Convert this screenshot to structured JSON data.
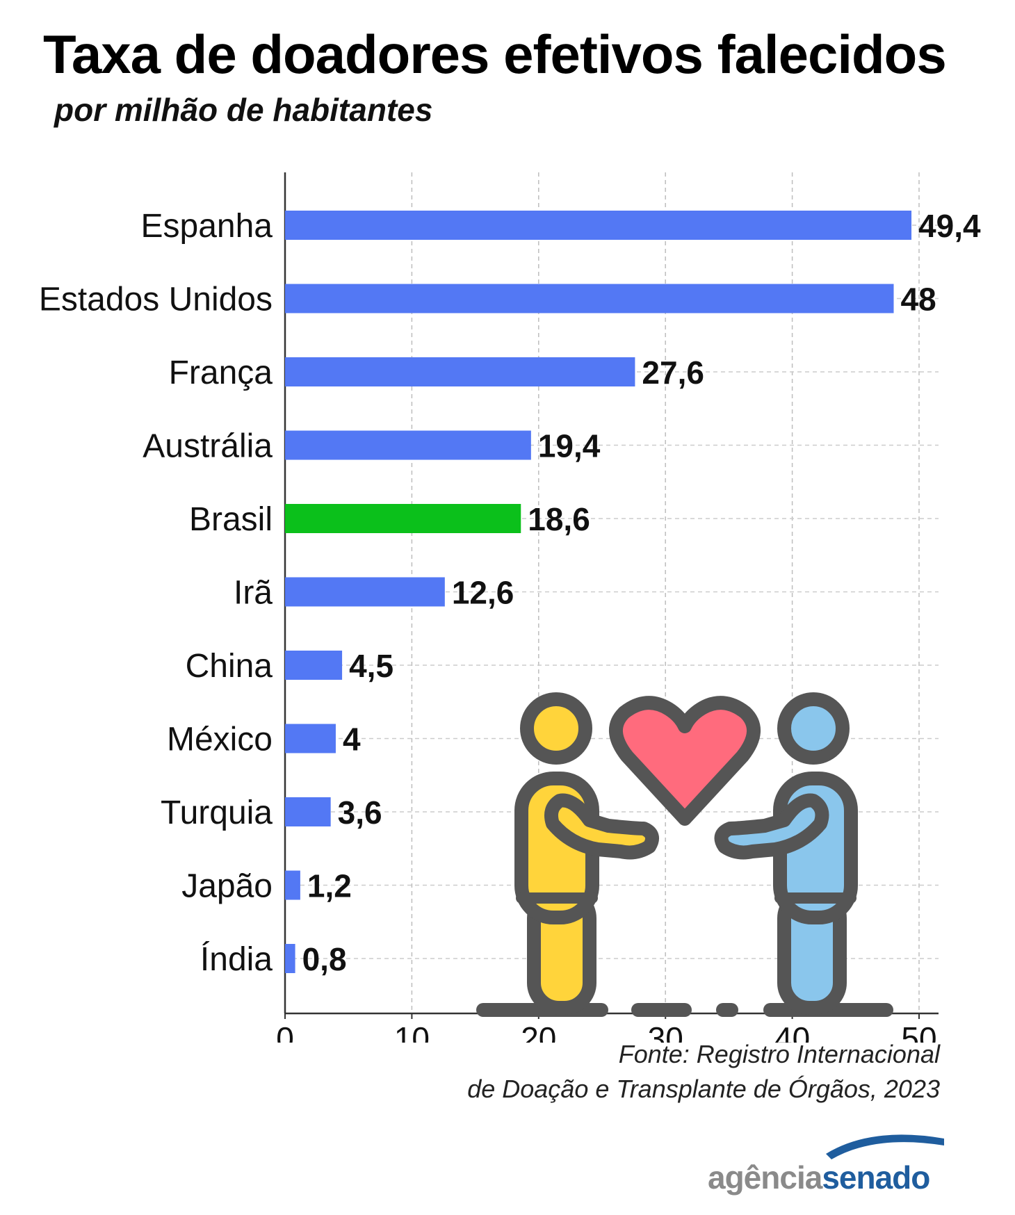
{
  "header": {
    "title": "Taxa de doadores efetivos falecidos",
    "subtitle": "por milhão de habitantes"
  },
  "chart_data": {
    "type": "bar",
    "orientation": "horizontal",
    "categories": [
      "Espanha",
      "Estados Unidos",
      "França",
      "Austrália",
      "Brasil",
      "Irã",
      "China",
      "México",
      "Turquia",
      "Japão",
      "Índia"
    ],
    "values": [
      49.4,
      48,
      27.6,
      19.4,
      18.6,
      12.6,
      4.5,
      4,
      3.6,
      1.2,
      0.8
    ],
    "value_labels": [
      "49,4",
      "48",
      "27,6",
      "19,4",
      "18,6",
      "12,6",
      "4,5",
      "4",
      "3,6",
      "1,2",
      "0,8"
    ],
    "xlim": [
      0,
      50
    ],
    "x_ticks": [
      0,
      10,
      20,
      30,
      40,
      50
    ],
    "grid": true,
    "colors": {
      "default_bar": "#5378f4",
      "highlight_bar": "#0bc01b",
      "highlight_category": "Brasil"
    }
  },
  "source": {
    "line1": "Fonte: Registro Internacional",
    "line2": "de Doação e Transplante de Órgãos, 2023"
  },
  "logo": {
    "part1": "agência",
    "part2": "senado",
    "color1": "#8a8a8a",
    "color2": "#1f5d9e"
  },
  "illustration": {
    "icon": "people-sharing-heart-icon",
    "colors": {
      "person_left": "#ffd43b",
      "person_right": "#8ac6ec",
      "heart": "#ff6b7d",
      "outline": "#555555"
    }
  }
}
